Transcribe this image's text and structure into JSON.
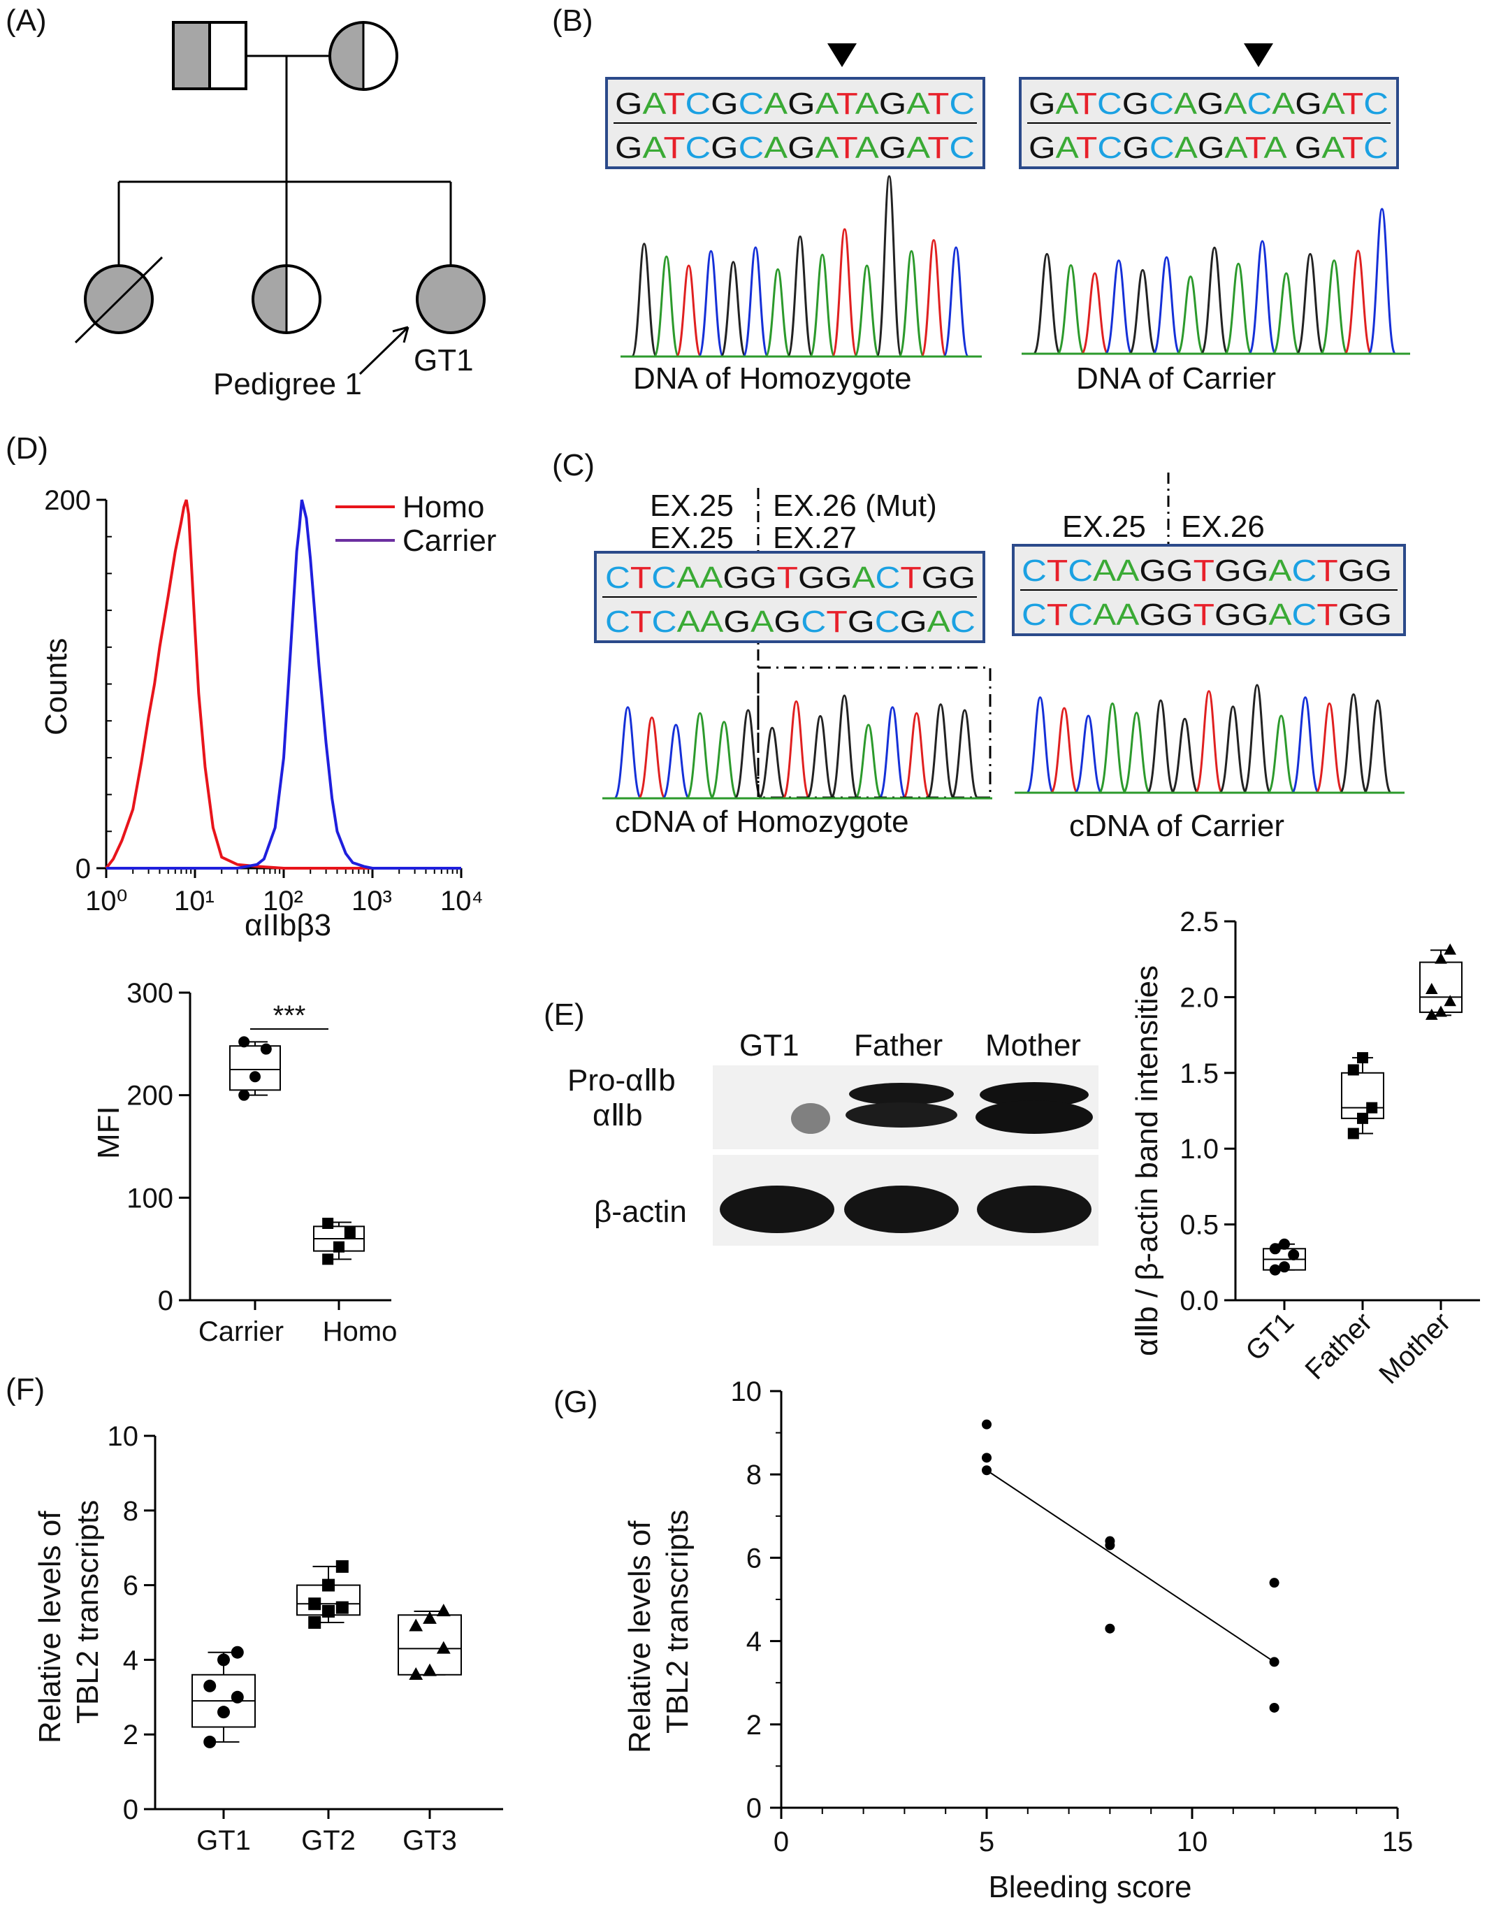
{
  "colors": {
    "A": "#3aaa35",
    "T": "#e8202a",
    "C": "#1ba1e2",
    "G": "#111111",
    "trace_A": "#2c9a2c",
    "trace_T": "#e02020",
    "trace_C": "#1530d8",
    "trace_G": "#222222",
    "homo": "#e8141b",
    "carrier": "#1f1fdd",
    "carrier_legend": "#6b2fa0",
    "affected": "#a6a6a6",
    "seq_box_border": "#2b4a8a",
    "seq_box_fill": "#ececec"
  },
  "panel_A": {
    "label": "(A)",
    "pedigree_label": "Pedigree 1",
    "proband_label": "GT1"
  },
  "panel_B": {
    "label": "(B)",
    "left": {
      "seq_top": "GATCGCAGATAGATC",
      "seq_bottom": "GATCGCAGATAGATC",
      "caption": "DNA of Homozygote"
    },
    "right": {
      "seq_top": "GATCGCAGACAGATC",
      "seq_bottom": "GATCGCAGATA GATC",
      "caption": "DNA of Carrier"
    }
  },
  "panel_C": {
    "label": "(C)",
    "left": {
      "exon_top_left": "EX.25",
      "exon_top_right": "EX.26 (Mut)",
      "exon_bottom_left": "EX.25",
      "exon_bottom_right": "EX.27",
      "seq_top": "CTCAAGGTGGACTGG",
      "seq_bottom": "CTCAAGAGCTGCGAC",
      "caption": "cDNA of Homozygote"
    },
    "right": {
      "exon_left": "EX.25",
      "exon_right": "EX.26",
      "seq_top": "CTCAAGGTGGACTGG",
      "seq_bottom": "CTCAAGGTGGACTGG",
      "caption": "cDNA of Carrier"
    }
  },
  "panel_D": {
    "label": "(D)",
    "legend_homo": "Homo",
    "legend_carrier": "Carrier"
  },
  "panel_E": {
    "label": "(E)",
    "lanes": [
      "GT1",
      "Father",
      "Mother"
    ],
    "band_pro": "Pro-αⅡb",
    "band_aiib": "αⅡb",
    "band_actin": "β-actin"
  },
  "panel_F": {
    "label": "(F)"
  },
  "panel_G": {
    "label": "(G)"
  },
  "chart_data": [
    {
      "id": "D_histogram",
      "type": "line",
      "xlabel": "αIIbβ3",
      "ylabel": "Counts",
      "x_scale": "log",
      "xlim": [
        1,
        10000
      ],
      "ylim": [
        0,
        200
      ],
      "xticks": [
        "10⁰",
        "10¹",
        "10²",
        "10³",
        "10⁴"
      ],
      "yticks": [
        "0",
        "200"
      ],
      "series": [
        {
          "name": "Homo",
          "x": [
            1,
            1.2,
            1.5,
            2,
            2.5,
            3,
            3.5,
            4,
            5,
            6,
            7,
            7.5,
            8,
            8.5,
            9,
            10,
            11,
            13,
            16,
            20,
            30,
            50,
            100,
            1000,
            10000
          ],
          "y": [
            0,
            5,
            15,
            32,
            58,
            82,
            100,
            120,
            148,
            172,
            188,
            196,
            200,
            192,
            170,
            130,
            95,
            55,
            22,
            6,
            2,
            1,
            0,
            0,
            0
          ]
        },
        {
          "name": "Carrier",
          "x": [
            1,
            10,
            30,
            50,
            60,
            80,
            100,
            120,
            140,
            150,
            160,
            180,
            200,
            250,
            300,
            350,
            400,
            500,
            600,
            800,
            1000,
            10000
          ],
          "y": [
            0,
            0,
            0,
            2,
            5,
            22,
            60,
            120,
            172,
            185,
            200,
            190,
            168,
            110,
            68,
            38,
            20,
            8,
            3,
            1,
            0,
            0
          ]
        }
      ]
    },
    {
      "id": "D_box",
      "type": "box",
      "ylabel": "MFI",
      "ylim": [
        0,
        300
      ],
      "yticks": [
        0,
        100,
        200,
        300
      ],
      "categories": [
        "Carrier",
        "Homo"
      ],
      "boxes": [
        {
          "name": "Carrier",
          "min": 200,
          "q1": 205,
          "median": 225,
          "q3": 248,
          "max": 252,
          "points": [
            200,
            218,
            245,
            252
          ],
          "marker": "circle"
        },
        {
          "name": "Homo",
          "min": 40,
          "q1": 48,
          "median": 60,
          "q3": 72,
          "max": 76,
          "points": [
            40,
            52,
            66,
            75
          ],
          "marker": "square"
        }
      ],
      "annotation": "***"
    },
    {
      "id": "E_box",
      "type": "box",
      "ylabel": "αⅡb / β-actin band intensities",
      "ylim": [
        0,
        2.5
      ],
      "yticks": [
        "0.0",
        "0.5",
        "1.0",
        "1.5",
        "2.0",
        "2.5"
      ],
      "categories": [
        "GT1",
        "Father",
        "Mother"
      ],
      "boxes": [
        {
          "name": "GT1",
          "min": 0.2,
          "q1": 0.2,
          "median": 0.27,
          "q3": 0.34,
          "max": 0.37,
          "points": [
            0.2,
            0.22,
            0.3,
            0.34,
            0.37
          ],
          "marker": "circle"
        },
        {
          "name": "Father",
          "min": 1.1,
          "q1": 1.2,
          "median": 1.27,
          "q3": 1.5,
          "max": 1.6,
          "points": [
            1.1,
            1.2,
            1.27,
            1.52,
            1.6
          ],
          "marker": "square"
        },
        {
          "name": "Mother",
          "min": 1.88,
          "q1": 1.9,
          "median": 2.0,
          "q3": 2.23,
          "max": 2.31,
          "points": [
            1.88,
            1.9,
            1.97,
            2.05,
            2.25,
            2.31
          ],
          "marker": "triangle"
        }
      ]
    },
    {
      "id": "F_box",
      "type": "box",
      "ylabel": "Relative levels of TBL2 transcripts",
      "ylim": [
        0,
        10
      ],
      "yticks": [
        0,
        2,
        4,
        6,
        8,
        10
      ],
      "categories": [
        "GT1",
        "GT2",
        "GT3"
      ],
      "boxes": [
        {
          "name": "GT1",
          "min": 1.8,
          "q1": 2.2,
          "median": 2.9,
          "q3": 3.6,
          "max": 4.2,
          "points": [
            1.8,
            2.6,
            3.0,
            3.3,
            4.0,
            4.2
          ],
          "marker": "circle"
        },
        {
          "name": "GT2",
          "min": 5.0,
          "q1": 5.2,
          "median": 5.5,
          "q3": 6.0,
          "max": 6.5,
          "points": [
            5.0,
            5.3,
            5.4,
            5.5,
            6.0,
            6.5
          ],
          "marker": "square"
        },
        {
          "name": "GT3",
          "min": 3.6,
          "q1": 3.6,
          "median": 4.3,
          "q3": 5.2,
          "max": 5.3,
          "points": [
            3.6,
            3.7,
            4.3,
            4.9,
            5.1,
            5.3
          ],
          "marker": "triangle"
        }
      ]
    },
    {
      "id": "G_scatter",
      "type": "scatter",
      "xlabel": "Bleeding score",
      "ylabel": "Relative levels of TBL2 transcripts",
      "xlim": [
        0,
        15
      ],
      "ylim": [
        0,
        10
      ],
      "xticks": [
        0,
        5,
        10,
        15
      ],
      "yticks": [
        0,
        2,
        4,
        6,
        8,
        10
      ],
      "points": [
        {
          "x": 5,
          "y": 9.2
        },
        {
          "x": 5,
          "y": 8.4
        },
        {
          "x": 5,
          "y": 8.1
        },
        {
          "x": 8,
          "y": 6.4
        },
        {
          "x": 8,
          "y": 6.3
        },
        {
          "x": 8,
          "y": 4.3
        },
        {
          "x": 12,
          "y": 5.4
        },
        {
          "x": 12,
          "y": 3.5
        },
        {
          "x": 12,
          "y": 2.4
        }
      ],
      "fit_line": {
        "x": [
          5,
          12
        ],
        "y": [
          8.1,
          3.5
        ]
      }
    }
  ]
}
